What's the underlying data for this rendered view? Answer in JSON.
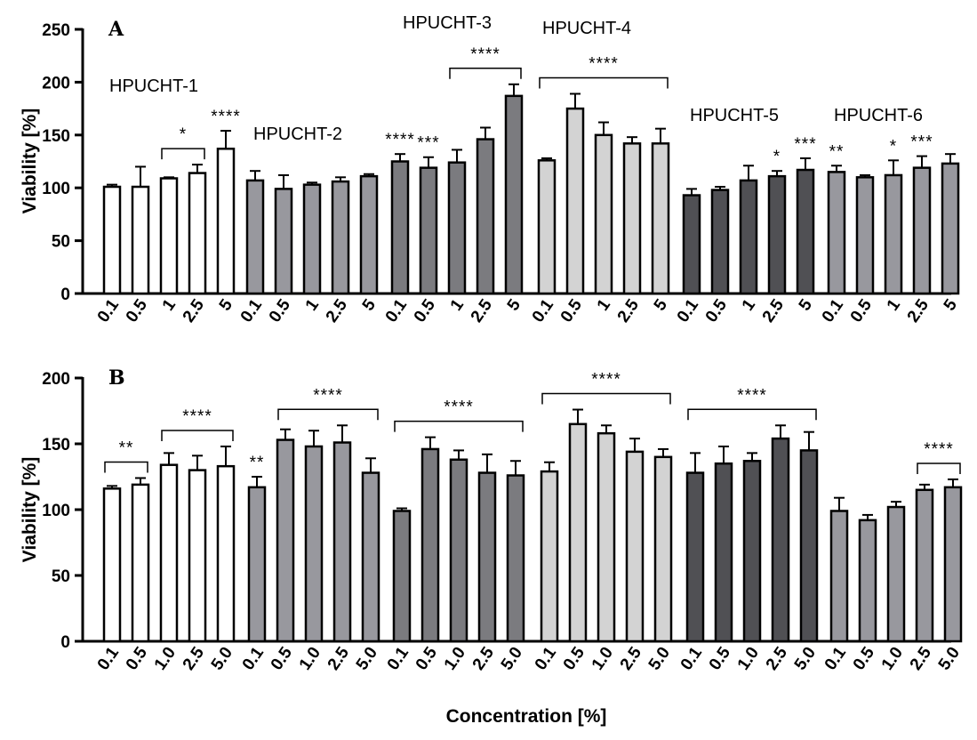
{
  "chart_data": [
    {
      "type": "bar",
      "panel": "A",
      "ylabel": "Viability [%]",
      "xlabel": "",
      "ylim": [
        0,
        250
      ],
      "yticks": [
        "0",
        "50",
        "100",
        "150",
        "200",
        "250"
      ],
      "groups": [
        {
          "name": "HPUCHT-1",
          "fill": "#ffffff",
          "categories": [
            "0.1",
            "0.5",
            "1",
            "2.5",
            "5"
          ],
          "values": [
            101,
            101,
            109,
            114,
            137
          ],
          "errors": [
            2,
            19,
            1,
            8,
            17
          ],
          "sig": [
            "",
            "",
            "",
            "",
            "****"
          ],
          "brackets": [
            {
              "from": 2,
              "to": 3,
              "label": "*"
            }
          ]
        },
        {
          "name": "HPUCHT-2",
          "fill": "#98989e",
          "categories": [
            "0.1",
            "0.5",
            "1",
            "2.5",
            "5"
          ],
          "values": [
            107,
            99,
            103,
            106,
            111
          ],
          "errors": [
            9,
            13,
            2,
            4,
            2
          ],
          "sig": [
            "",
            "",
            "",
            "",
            ""
          ],
          "brackets": []
        },
        {
          "name": "HPUCHT-3",
          "fill": "#7b7b7f",
          "categories": [
            "0.1",
            "0.5",
            "1",
            "2.5",
            "5"
          ],
          "values": [
            125,
            119,
            124,
            146,
            187
          ],
          "errors": [
            7,
            10,
            12,
            11,
            11
          ],
          "sig": [
            "****",
            "***",
            "",
            "",
            ""
          ],
          "brackets": [
            {
              "from": 2,
              "to": 4,
              "label": "****"
            }
          ]
        },
        {
          "name": "HPUCHT-4",
          "fill": "#d3d3d3",
          "categories": [
            "0.1",
            "0.5",
            "1",
            "2.5",
            "5"
          ],
          "values": [
            126,
            175,
            150,
            142,
            142
          ],
          "errors": [
            2,
            14,
            12,
            6,
            14
          ],
          "sig": [
            "",
            "",
            "",
            "",
            ""
          ],
          "brackets": [
            {
              "from": 0,
              "to": 4,
              "label": "****"
            }
          ]
        },
        {
          "name": "HPUCHT-5",
          "fill": "#505054",
          "categories": [
            "0.1",
            "0.5",
            "1",
            "2.5",
            "5"
          ],
          "values": [
            93,
            98,
            107,
            111,
            117
          ],
          "errors": [
            6,
            3,
            14,
            5,
            11
          ],
          "sig": [
            "",
            "",
            "",
            "*",
            "***"
          ],
          "brackets": []
        },
        {
          "name": "HPUCHT-6",
          "fill": "#98989e",
          "categories": [
            "0.1",
            "0.5",
            "1",
            "2.5",
            "5"
          ],
          "values": [
            115,
            110,
            112,
            119,
            123
          ],
          "errors": [
            6,
            2,
            14,
            11,
            9
          ],
          "sig": [
            "**",
            "",
            "*",
            "***",
            ""
          ],
          "brackets": []
        }
      ]
    },
    {
      "type": "bar",
      "panel": "B",
      "ylabel": "Viability [%]",
      "xlabel": "Concentration [%]",
      "ylim": [
        0,
        200
      ],
      "yticks": [
        "0",
        "50",
        "100",
        "150",
        "200"
      ],
      "groups": [
        {
          "name": "",
          "fill": "#ffffff",
          "categories": [
            "0.1",
            "0.5",
            "1.0",
            "2.5",
            "5.0"
          ],
          "values": [
            116,
            119,
            134,
            130,
            133
          ],
          "errors": [
            2,
            5,
            9,
            11,
            15
          ],
          "sig": [
            "",
            "",
            "",
            "",
            ""
          ],
          "brackets": [
            {
              "from": 0,
              "to": 1,
              "label": "**"
            },
            {
              "from": 2,
              "to": 4,
              "label": "****"
            }
          ]
        },
        {
          "name": "",
          "fill": "#98989e",
          "categories": [
            "0.1",
            "0.5",
            "1.0",
            "2.5",
            "5.0"
          ],
          "values": [
            117,
            153,
            148,
            151,
            128
          ],
          "errors": [
            8,
            8,
            12,
            13,
            11
          ],
          "sig": [
            "**",
            "",
            "",
            "",
            ""
          ],
          "brackets": [
            {
              "from": 1,
              "to": 4,
              "label": "****"
            }
          ]
        },
        {
          "name": "",
          "fill": "#7b7b7f",
          "categories": [
            "0.1",
            "0.5",
            "1.0",
            "2.5",
            "5.0"
          ],
          "values": [
            99,
            146,
            138,
            128,
            126
          ],
          "errors": [
            2,
            9,
            7,
            14,
            11
          ],
          "sig": [
            "",
            "",
            "",
            "",
            ""
          ],
          "brackets": [
            {
              "from": 0,
              "to": 4,
              "label": "****"
            }
          ]
        },
        {
          "name": "",
          "fill": "#d3d3d3",
          "categories": [
            "0.1",
            "0.5",
            "1.0",
            "2.5",
            "5.0"
          ],
          "values": [
            129,
            165,
            158,
            144,
            140
          ],
          "errors": [
            7,
            11,
            6,
            10,
            6
          ],
          "sig": [
            "",
            "",
            "",
            "",
            ""
          ],
          "brackets": [
            {
              "from": 0,
              "to": 4,
              "label": "****"
            }
          ]
        },
        {
          "name": "",
          "fill": "#505054",
          "categories": [
            "0.1",
            "0.5",
            "1.0",
            "2.5",
            "5.0"
          ],
          "values": [
            128,
            135,
            137,
            154,
            145
          ],
          "errors": [
            15,
            13,
            6,
            10,
            14
          ],
          "sig": [
            "",
            "",
            "",
            "",
            ""
          ],
          "brackets": [
            {
              "from": 0,
              "to": 4,
              "label": "****"
            }
          ]
        },
        {
          "name": "",
          "fill": "#98989e",
          "categories": [
            "0.1",
            "0.5",
            "1.0",
            "2.5",
            "5.0"
          ],
          "values": [
            99,
            92,
            102,
            115,
            117
          ],
          "errors": [
            10,
            4,
            4,
            4,
            6
          ],
          "sig": [
            "",
            "",
            "",
            "",
            ""
          ],
          "brackets": [
            {
              "from": 3,
              "to": 4,
              "label": "****"
            }
          ]
        }
      ]
    }
  ]
}
